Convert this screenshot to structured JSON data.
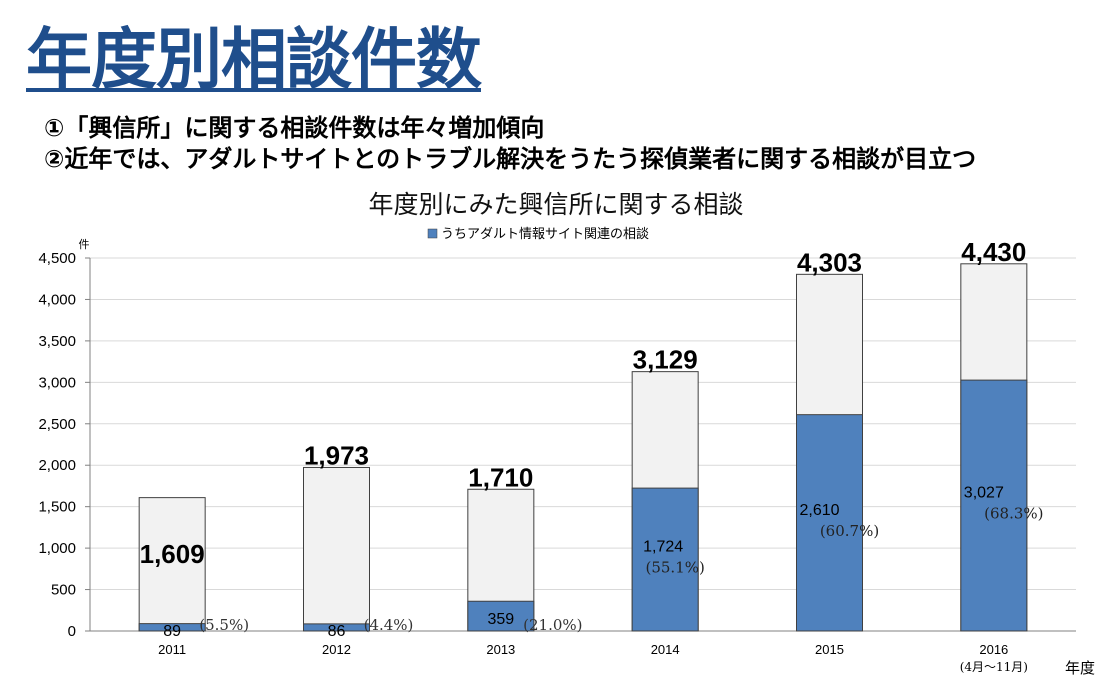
{
  "slide": {
    "title": "年度別相談件数",
    "bullets": [
      "①「興信所」に関する相談件数は年々増加傾向",
      "②近年では、アダルトサイトとのトラブル解決をうたう探偵業者に関する相談が目立つ"
    ]
  },
  "chart_data": {
    "type": "bar",
    "stacked": true,
    "title": "年度別にみた興信所に関する相談",
    "ylabel": "件",
    "xlabel": "年度",
    "ylim": [
      0,
      4500
    ],
    "yticks": [
      "0",
      "500",
      "1,000",
      "1,500",
      "2,000",
      "2,500",
      "3,000",
      "3,500",
      "4,000",
      "4,500"
    ],
    "grid": true,
    "legend_position": "top-center",
    "categories": [
      "2011",
      "2012",
      "2013",
      "2014",
      "2015",
      "2016"
    ],
    "category_note": "(4月～11月)",
    "totals": [
      1609,
      1973,
      1710,
      3129,
      4303,
      4430
    ],
    "total_labels": [
      "1,609",
      "1,973",
      "1,710",
      "3,129",
      "4,303",
      "4,430"
    ],
    "series": [
      {
        "name": "うちアダルト情報サイト関連の相談",
        "color": "#4f81bd",
        "values": [
          89,
          86,
          359,
          1724,
          2610,
          3027
        ],
        "value_labels": [
          "89",
          "86",
          "359",
          "1,724",
          "2,610",
          "3,027"
        ],
        "percent_labels": [
          "(5.5%)",
          "(4.4%)",
          "(21.0%)",
          "(55.1%)",
          "(60.7%)",
          "(68.3%)"
        ]
      }
    ],
    "remainder_color": "#f2f2f2"
  }
}
